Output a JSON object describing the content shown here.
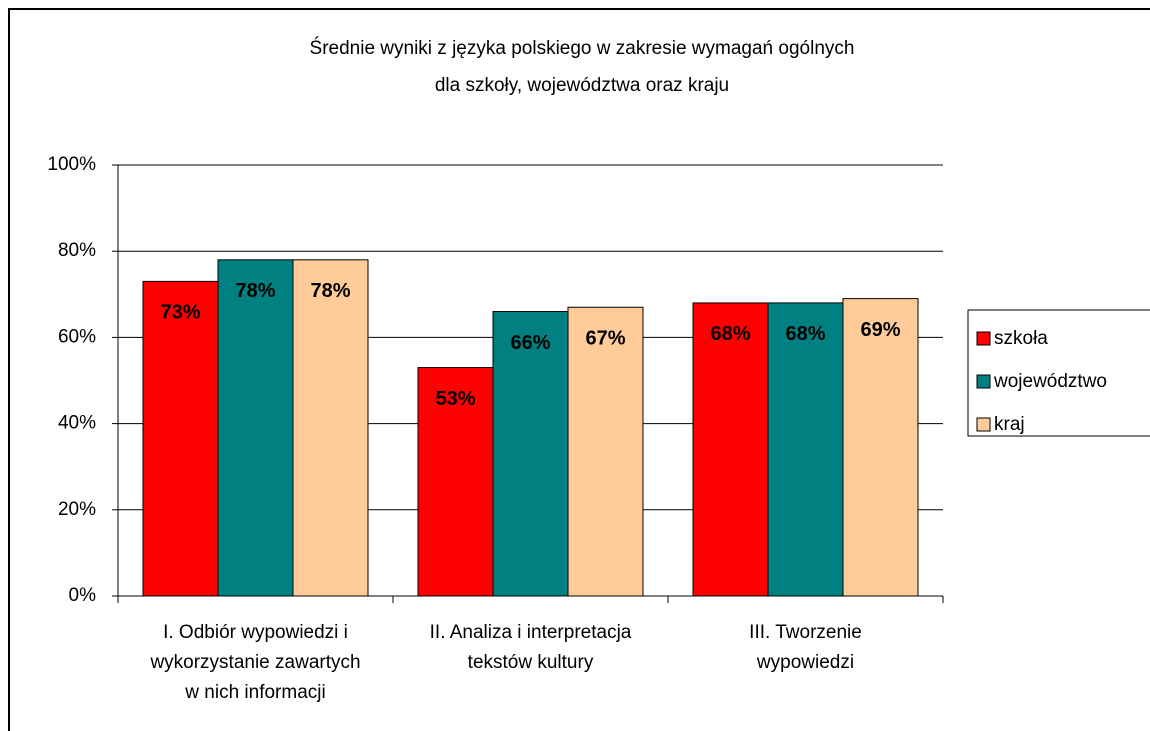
{
  "chart_data": {
    "type": "bar",
    "title": [
      "Średnie wyniki z języka polskiego w zakresie wymagań ogólnych",
      "dla szkoły, województwa oraz kraju"
    ],
    "categories": [
      [
        "I. Odbiór wypowiedzi i",
        "wykorzystanie zawartych",
        "w nich informacji"
      ],
      [
        "II. Analiza i interpretacja",
        "tekstów kultury"
      ],
      [
        "III. Tworzenie",
        "wypowiedzi"
      ]
    ],
    "series": [
      {
        "name": "szkoła",
        "color": "#ff0000",
        "values": [
          73,
          53,
          68
        ],
        "value_labels": [
          "73%",
          "53%",
          "68%"
        ]
      },
      {
        "name": "województwo",
        "color": "#008080",
        "values": [
          78,
          66,
          68
        ],
        "value_labels": [
          "78%",
          "66%",
          "68%"
        ]
      },
      {
        "name": "kraj",
        "color": "#ffcc99",
        "values": [
          78,
          67,
          69
        ],
        "value_labels": [
          "78%",
          "67%",
          "69%"
        ]
      }
    ],
    "ylim": [
      0,
      100
    ],
    "yticks": [
      {
        "value": 0,
        "label": "0%"
      },
      {
        "value": 20,
        "label": "20%"
      },
      {
        "value": 40,
        "label": "40%"
      },
      {
        "value": 60,
        "label": "60%"
      },
      {
        "value": 80,
        "label": "80%"
      },
      {
        "value": 100,
        "label": "100%"
      }
    ],
    "grid": true,
    "legend": "right"
  }
}
